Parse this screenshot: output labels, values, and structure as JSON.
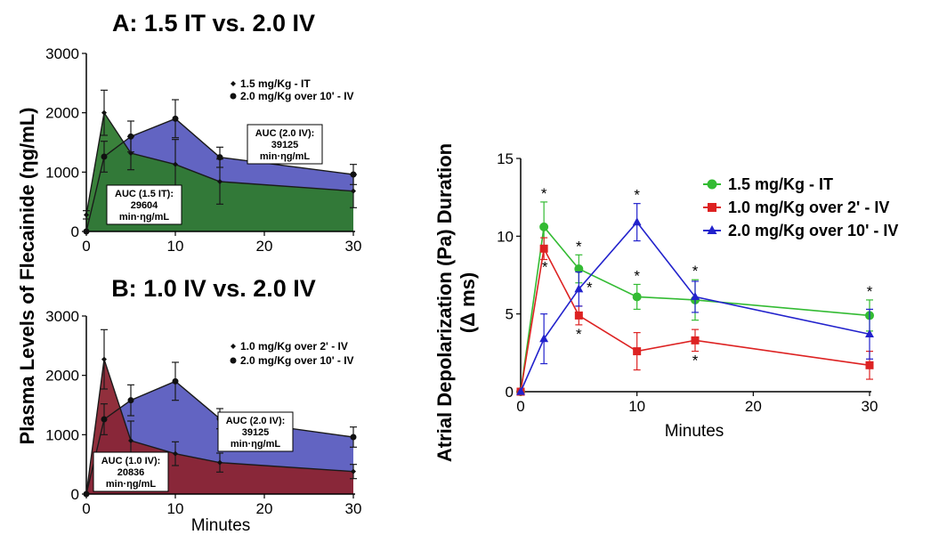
{
  "ylabel_shared": "Plasma Levels of Flecainide (ηg/mL)",
  "chart_data": [
    {
      "type": "area",
      "title": "A: 1.5 IT vs. 2.0 IV",
      "xlabel": "",
      "ylabel": "",
      "xlim": [
        0,
        30
      ],
      "ylim": [
        0,
        3000
      ],
      "xticks": [
        0,
        10,
        20,
        30
      ],
      "yticks": [
        0,
        1000,
        2000,
        3000
      ],
      "legend_position": "top-right",
      "series": [
        {
          "name": "1.5 mg/Kg - IT",
          "color": "#2e7d32",
          "fill": "#2f7a30",
          "marker": "diamond",
          "x": [
            0,
            2,
            5,
            10,
            15,
            30
          ],
          "y": [
            280,
            2000,
            1320,
            1130,
            840,
            680
          ],
          "err": [
            70,
            380,
            280,
            420,
            380,
            280
          ]
        },
        {
          "name": "2.0 mg/Kg over 10' - IV",
          "color": "#1a1a5e",
          "fill": "#5a5cbf",
          "marker": "circle",
          "x": [
            0,
            2,
            5,
            10,
            15,
            30
          ],
          "y": [
            0,
            1260,
            1600,
            1900,
            1250,
            960
          ],
          "err": [
            0,
            260,
            260,
            320,
            170,
            170
          ]
        }
      ],
      "annotations": [
        {
          "lines": [
            "AUC (1.5 IT):",
            "29604",
            "min·ηg/mL"
          ]
        },
        {
          "lines": [
            "AUC (2.0 IV):",
            "39125",
            "min·ηg/mL"
          ]
        }
      ]
    },
    {
      "type": "area",
      "title": "B: 1.0 IV vs. 2.0 IV",
      "xlabel": "Minutes",
      "ylabel": "",
      "xlim": [
        0,
        30
      ],
      "ylim": [
        0,
        3000
      ],
      "xticks": [
        0,
        10,
        20,
        30
      ],
      "yticks": [
        0,
        1000,
        2000,
        3000
      ],
      "legend_position": "top-right",
      "series": [
        {
          "name": "1.0 mg/Kg over 2' - IV",
          "color": "#5a1020",
          "fill": "#8b2432",
          "marker": "diamond",
          "x": [
            0,
            2,
            5,
            10,
            15,
            30
          ],
          "y": [
            0,
            2270,
            900,
            680,
            530,
            380
          ],
          "err": [
            0,
            500,
            330,
            200,
            160,
            120
          ]
        },
        {
          "name": "2.0 mg/Kg over 10' - IV",
          "color": "#1a1a5e",
          "fill": "#5a5cbf",
          "marker": "circle",
          "x": [
            0,
            2,
            5,
            10,
            15,
            30
          ],
          "y": [
            0,
            1260,
            1580,
            1900,
            1270,
            960
          ],
          "err": [
            0,
            260,
            260,
            320,
            170,
            170
          ]
        }
      ],
      "annotations": [
        {
          "lines": [
            "AUC (1.0 IV):",
            "20836",
            "min·ηg/mL"
          ]
        },
        {
          "lines": [
            "AUC (2.0 IV):",
            "39125",
            "min·ηg/mL"
          ]
        }
      ]
    },
    {
      "type": "line",
      "title": "",
      "xlabel": "Minutes",
      "ylabel_lines": [
        "Atrial Depolarization (Pa) Duration",
        "(Δ ms)"
      ],
      "xlim": [
        0,
        30
      ],
      "ylim": [
        0,
        15
      ],
      "xticks": [
        0,
        10,
        20,
        30
      ],
      "yticks": [
        0,
        5,
        10,
        15
      ],
      "legend_position": "top-right",
      "series": [
        {
          "name": "1.5 mg/Kg - IT",
          "color": "#33bb33",
          "marker": "circle",
          "x": [
            0,
            2,
            5,
            10,
            15,
            30
          ],
          "y": [
            0,
            10.6,
            7.9,
            6.1,
            5.9,
            4.9
          ],
          "err": [
            0,
            1.6,
            0.9,
            0.8,
            1.3,
            1.0
          ]
        },
        {
          "name": "1.0 mg/Kg over 2' - IV",
          "color": "#dd2222",
          "marker": "square",
          "x": [
            0,
            2,
            5,
            10,
            15,
            30
          ],
          "y": [
            0,
            9.2,
            4.9,
            2.6,
            3.3,
            1.7
          ],
          "err": [
            0,
            0.7,
            0.6,
            1.2,
            0.7,
            0.9
          ]
        },
        {
          "name": "2.0 mg/Kg over 10' - IV",
          "color": "#2222cc",
          "marker": "triangle",
          "x": [
            0,
            2,
            5,
            10,
            15,
            30
          ],
          "y": [
            0,
            3.4,
            6.6,
            10.9,
            6.1,
            3.7
          ],
          "err": [
            0,
            1.6,
            1.1,
            1.2,
            1.0,
            1.6
          ]
        }
      ],
      "significance_marker": "*",
      "significance_x": [
        2,
        5,
        10,
        15,
        30
      ]
    }
  ]
}
